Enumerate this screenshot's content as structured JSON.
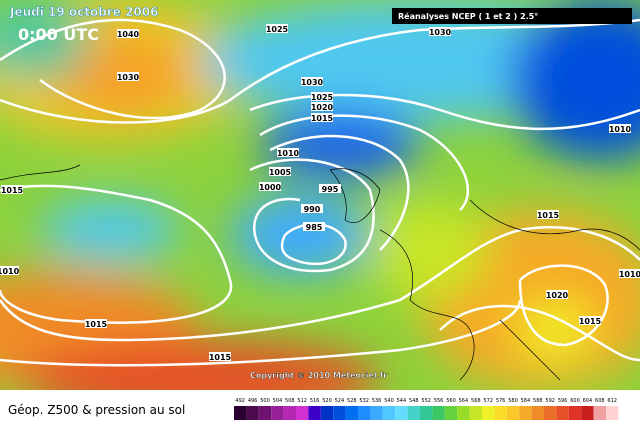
{
  "header": {
    "date": "Jeudi 19 octobre 2006",
    "time": "0:00 UTC",
    "source": "Réanalyses NCEP ( 1 et 2 ) 2.5°",
    "copyright": "Copyright © 2010 Meteociel.fr"
  },
  "legend": {
    "title": "Géop. Z500 & pression au sol",
    "values": [
      492,
      496,
      500,
      504,
      508,
      512,
      516,
      520,
      524,
      528,
      532,
      536,
      540,
      544,
      548,
      552,
      556,
      560,
      564,
      568,
      572,
      576,
      580,
      584,
      588,
      592,
      596,
      600,
      604,
      608,
      612
    ],
    "colors": [
      "#2a0033",
      "#4b0a4b",
      "#6e1470",
      "#961e96",
      "#b428b4",
      "#d232d2",
      "#3c00c8",
      "#0032c8",
      "#0050dc",
      "#006ef0",
      "#1e8cff",
      "#3caaff",
      "#50c8ff",
      "#64dcff",
      "#46d2c8",
      "#32c896",
      "#3cc864",
      "#64d23c",
      "#96dc28",
      "#c8e628",
      "#f0f028",
      "#fadc28",
      "#fac828",
      "#f5aa28",
      "#f08c28",
      "#eb6e28",
      "#e65028",
      "#e13228",
      "#c81e1e",
      "#f0a0a0",
      "#ffd2d2"
    ]
  },
  "isobars": [
    "1040",
    "1025",
    "1030",
    "1030",
    "1030",
    "1025",
    "1020",
    "1015",
    "1010",
    "1005",
    "1000",
    "995",
    "990",
    "985",
    "1015",
    "1010",
    "1015",
    "1015",
    "1015",
    "1020",
    "1015",
    "1010",
    "1010"
  ]
}
